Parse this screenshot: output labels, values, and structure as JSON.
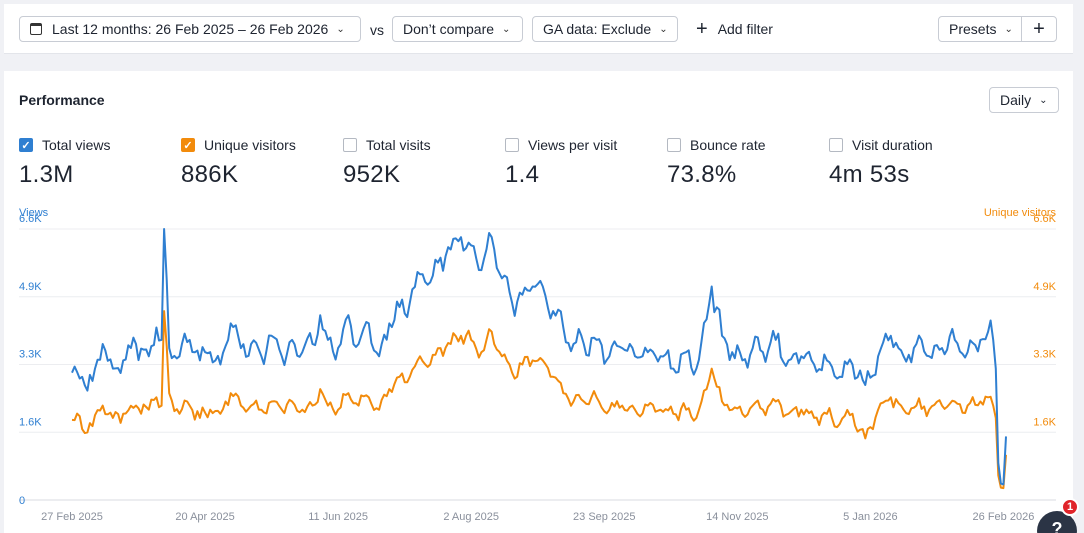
{
  "toolbar": {
    "date_range": "Last 12 months: 26 Feb 2025 – 26 Feb 2026",
    "vs": "vs",
    "compare": "Don’t compare",
    "ga_data": "GA data: Exclude",
    "add_filter": "Add filter",
    "presets": "Presets"
  },
  "panel": {
    "title": "Performance",
    "granularity": "Daily"
  },
  "metrics": [
    {
      "label": "Total views",
      "value": "1.3M",
      "checked": true,
      "color": "#2f7fd1"
    },
    {
      "label": "Unique visitors",
      "value": "886K",
      "checked": true,
      "color": "#f28b0c"
    },
    {
      "label": "Total visits",
      "value": "952K",
      "checked": false,
      "color": ""
    },
    {
      "label": "Views per visit",
      "value": "1.4",
      "checked": false,
      "color": ""
    },
    {
      "label": "Bounce rate",
      "value": "73.8%",
      "checked": false,
      "color": ""
    },
    {
      "label": "Visit duration",
      "value": "4m 53s",
      "checked": false,
      "color": ""
    }
  ],
  "help": {
    "label": "?",
    "badge": "1"
  },
  "chart_data": {
    "type": "line",
    "left_axis_label": "Views",
    "right_axis_label": "Unique visitors",
    "left_ticks": [
      "0",
      "1.6K",
      "3.3K",
      "4.9K",
      "6.6K"
    ],
    "right_ticks": [
      "1.6K",
      "3.3K",
      "4.9K",
      "6.6K"
    ],
    "ylim": [
      0,
      6600
    ],
    "x_tick_labels": [
      "27 Feb 2025",
      "20 Apr 2025",
      "11 Jun 2025",
      "2 Aug 2025",
      "23 Sep 2025",
      "14 Nov 2025",
      "5 Jan 2026",
      "26 Feb 2026"
    ],
    "x_tick_index": [
      0,
      52,
      104,
      156,
      208,
      260,
      312,
      364
    ],
    "n_points": 366,
    "series": [
      {
        "name": "Total views",
        "color": "#2f7fd1",
        "anchors": [
          [
            0,
            3100
          ],
          [
            8,
            2900
          ],
          [
            12,
            3800
          ],
          [
            16,
            3200
          ],
          [
            20,
            3400
          ],
          [
            25,
            3800
          ],
          [
            30,
            3500
          ],
          [
            33,
            4200
          ],
          [
            35,
            3900
          ],
          [
            36,
            6600
          ],
          [
            38,
            3700
          ],
          [
            42,
            3500
          ],
          [
            46,
            3900
          ],
          [
            50,
            3400
          ],
          [
            54,
            3600
          ],
          [
            58,
            3300
          ],
          [
            62,
            4300
          ],
          [
            66,
            3700
          ],
          [
            70,
            3800
          ],
          [
            74,
            3500
          ],
          [
            78,
            4000
          ],
          [
            82,
            3500
          ],
          [
            86,
            3900
          ],
          [
            90,
            3600
          ],
          [
            94,
            3800
          ],
          [
            97,
            4500
          ],
          [
            100,
            3900
          ],
          [
            104,
            3700
          ],
          [
            108,
            4500
          ],
          [
            112,
            3800
          ],
          [
            116,
            4300
          ],
          [
            120,
            3500
          ],
          [
            124,
            4300
          ],
          [
            128,
            4700
          ],
          [
            132,
            4800
          ],
          [
            136,
            5500
          ],
          [
            140,
            5300
          ],
          [
            144,
            5900
          ],
          [
            148,
            6100
          ],
          [
            152,
            6400
          ],
          [
            156,
            6200
          ],
          [
            160,
            5600
          ],
          [
            164,
            6400
          ],
          [
            168,
            5400
          ],
          [
            172,
            4800
          ],
          [
            176,
            5000
          ],
          [
            180,
            5200
          ],
          [
            184,
            5200
          ],
          [
            188,
            4600
          ],
          [
            192,
            4200
          ],
          [
            196,
            3800
          ],
          [
            200,
            3800
          ],
          [
            205,
            3900
          ],
          [
            210,
            3500
          ],
          [
            215,
            3700
          ],
          [
            220,
            3500
          ],
          [
            225,
            3600
          ],
          [
            230,
            3500
          ],
          [
            235,
            3200
          ],
          [
            240,
            3600
          ],
          [
            244,
            3200
          ],
          [
            248,
            4400
          ],
          [
            250,
            5200
          ],
          [
            254,
            4000
          ],
          [
            258,
            3600
          ],
          [
            262,
            3400
          ],
          [
            266,
            3700
          ],
          [
            270,
            3600
          ],
          [
            275,
            3900
          ],
          [
            280,
            3400
          ],
          [
            285,
            3500
          ],
          [
            290,
            3300
          ],
          [
            295,
            3400
          ],
          [
            300,
            3000
          ],
          [
            305,
            3300
          ],
          [
            310,
            2800
          ],
          [
            315,
            3500
          ],
          [
            320,
            4000
          ],
          [
            325,
            3500
          ],
          [
            330,
            3800
          ],
          [
            335,
            3500
          ],
          [
            340,
            3700
          ],
          [
            345,
            3900
          ],
          [
            350,
            3600
          ],
          [
            355,
            3900
          ],
          [
            358,
            4100
          ],
          [
            360,
            3900
          ],
          [
            361,
            3200
          ],
          [
            362,
            900
          ],
          [
            363,
            400
          ],
          [
            364,
            380
          ],
          [
            365,
            1550
          ]
        ],
        "noise": 380
      },
      {
        "name": "Unique visitors",
        "color": "#f28b0c",
        "anchors": [
          [
            0,
            1950
          ],
          [
            8,
            1800
          ],
          [
            12,
            2300
          ],
          [
            16,
            2000
          ],
          [
            20,
            2100
          ],
          [
            25,
            2300
          ],
          [
            30,
            2200
          ],
          [
            33,
            2500
          ],
          [
            35,
            2300
          ],
          [
            36,
            4600
          ],
          [
            38,
            2600
          ],
          [
            42,
            2100
          ],
          [
            46,
            2300
          ],
          [
            50,
            2000
          ],
          [
            54,
            2200
          ],
          [
            58,
            2100
          ],
          [
            62,
            2600
          ],
          [
            66,
            2300
          ],
          [
            70,
            2300
          ],
          [
            74,
            2200
          ],
          [
            78,
            2400
          ],
          [
            82,
            2200
          ],
          [
            86,
            2400
          ],
          [
            90,
            2200
          ],
          [
            94,
            2300
          ],
          [
            97,
            2700
          ],
          [
            100,
            2300
          ],
          [
            104,
            2200
          ],
          [
            108,
            2600
          ],
          [
            112,
            2300
          ],
          [
            116,
            2500
          ],
          [
            120,
            2200
          ],
          [
            124,
            2700
          ],
          [
            128,
            3000
          ],
          [
            132,
            3000
          ],
          [
            136,
            3500
          ],
          [
            140,
            3300
          ],
          [
            144,
            3700
          ],
          [
            148,
            3800
          ],
          [
            152,
            4000
          ],
          [
            156,
            3900
          ],
          [
            160,
            3600
          ],
          [
            164,
            4100
          ],
          [
            168,
            3500
          ],
          [
            172,
            3100
          ],
          [
            176,
            3300
          ],
          [
            180,
            3400
          ],
          [
            184,
            3400
          ],
          [
            188,
            3000
          ],
          [
            192,
            2600
          ],
          [
            196,
            2400
          ],
          [
            200,
            2400
          ],
          [
            205,
            2500
          ],
          [
            210,
            2200
          ],
          [
            215,
            2300
          ],
          [
            220,
            2200
          ],
          [
            225,
            2300
          ],
          [
            230,
            2200
          ],
          [
            235,
            2100
          ],
          [
            240,
            2200
          ],
          [
            244,
            2000
          ],
          [
            248,
            2700
          ],
          [
            250,
            3200
          ],
          [
            254,
            2400
          ],
          [
            258,
            2200
          ],
          [
            262,
            2100
          ],
          [
            266,
            2300
          ],
          [
            270,
            2200
          ],
          [
            275,
            2400
          ],
          [
            280,
            2100
          ],
          [
            285,
            2200
          ],
          [
            290,
            2000
          ],
          [
            295,
            2100
          ],
          [
            300,
            1850
          ],
          [
            305,
            2100
          ],
          [
            310,
            1500
          ],
          [
            315,
            2200
          ],
          [
            320,
            2500
          ],
          [
            325,
            2200
          ],
          [
            330,
            2300
          ],
          [
            335,
            2200
          ],
          [
            340,
            2300
          ],
          [
            345,
            2400
          ],
          [
            350,
            2300
          ],
          [
            355,
            2400
          ],
          [
            358,
            2500
          ],
          [
            360,
            2300
          ],
          [
            361,
            2000
          ],
          [
            362,
            600
          ],
          [
            363,
            300
          ],
          [
            364,
            290
          ],
          [
            365,
            1100
          ]
        ],
        "noise": 230
      }
    ]
  }
}
